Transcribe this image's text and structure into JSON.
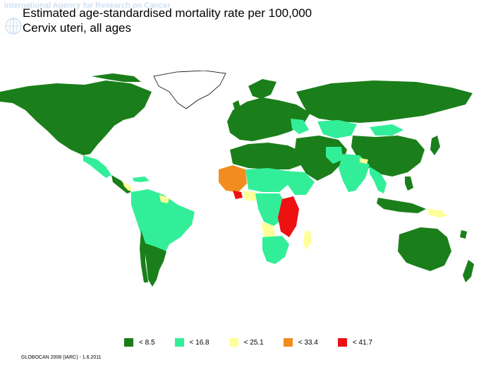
{
  "header": {
    "organization": "International Agency for Research on Cancer",
    "title_line1": "Estimated age-standardised mortality rate per 100,000",
    "title_line2": "Cervix uteri, all ages"
  },
  "map": {
    "ocean_color": "#ffffff",
    "no_data_color": "#ffffff",
    "border_color": "#ffffff"
  },
  "legend": {
    "items": [
      {
        "label": "< 8.5",
        "color": "#1a7f1a"
      },
      {
        "label": "< 16.8",
        "color": "#33ee99"
      },
      {
        "label": "< 25.1",
        "color": "#ffff99"
      },
      {
        "label": "< 33.4",
        "color": "#f28c1e"
      },
      {
        "label": "< 41.7",
        "color": "#ee1111"
      }
    ]
  },
  "footer": {
    "source": "GLOBOCAN 2008 (IARC) - 1.6.2011"
  }
}
